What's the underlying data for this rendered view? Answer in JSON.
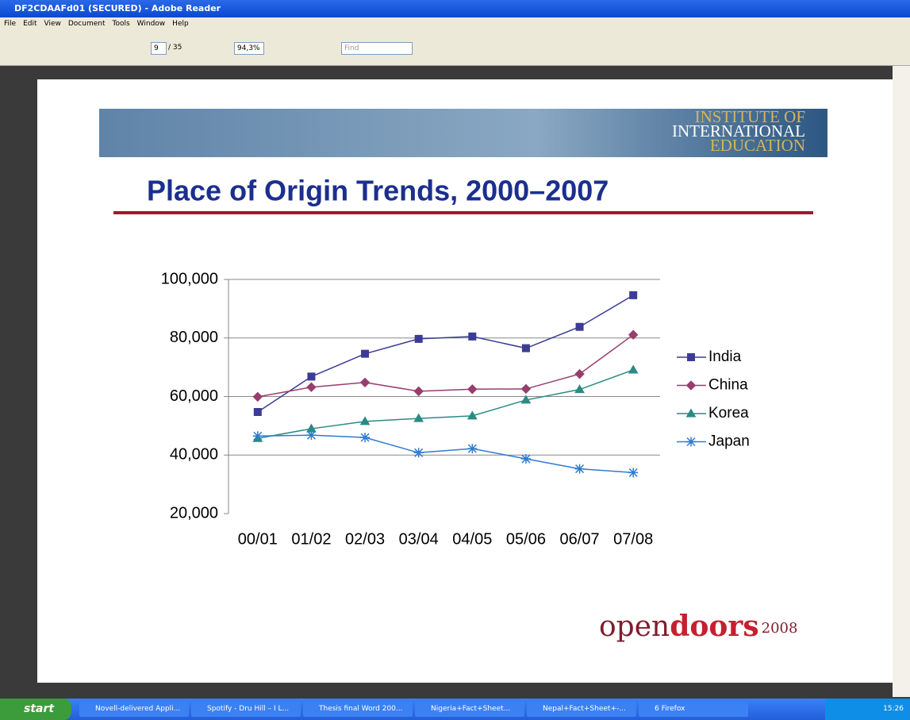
{
  "window": {
    "title": "DF2CDAAFd01 (SECURED) - Adobe Reader"
  },
  "menu": [
    "File",
    "Edit",
    "View",
    "Document",
    "Tools",
    "Window",
    "Help"
  ],
  "toolbar": {
    "page": "9",
    "pages": "/ 35",
    "zoom": "94,3%",
    "find": "Find"
  },
  "slide": {
    "banner": [
      "INSTITUTE OF",
      "INTERNATIONAL",
      "EDUCATION"
    ],
    "title": "Place of Origin Trends, 2000–2007",
    "logo": {
      "open": "open",
      "doors": "doors",
      "year": "2008"
    }
  },
  "chart_data": {
    "type": "line",
    "categories": [
      "00/01",
      "01/02",
      "02/03",
      "03/04",
      "04/05",
      "05/06",
      "06/07",
      "07/08"
    ],
    "series": [
      {
        "name": "India",
        "color": "#3c3c96",
        "marker": "square",
        "values": [
          54700,
          66800,
          74600,
          79700,
          80500,
          76500,
          83800,
          94600
        ]
      },
      {
        "name": "China",
        "color": "#973e6c",
        "marker": "diamond",
        "values": [
          59900,
          63200,
          64800,
          61800,
          62500,
          62600,
          67700,
          81100
        ]
      },
      {
        "name": "Korea",
        "color": "#2b8a84",
        "marker": "triangle",
        "values": [
          45700,
          49000,
          51500,
          52500,
          53400,
          58800,
          62400,
          69100
        ]
      },
      {
        "name": "Japan",
        "color": "#2f7bcf",
        "marker": "asterisk",
        "values": [
          46500,
          46800,
          46000,
          40800,
          42200,
          38700,
          35300,
          34000
        ]
      }
    ],
    "ylim": [
      20000,
      100000
    ],
    "yticks": [
      {
        "value": 20000,
        "label": "20,000"
      },
      {
        "value": 40000,
        "label": "40,000"
      },
      {
        "value": 60000,
        "label": "60,000"
      },
      {
        "value": 80000,
        "label": "80,000"
      },
      {
        "value": 100000,
        "label": "100,000"
      }
    ],
    "grid": true
  },
  "taskbar": {
    "start": "start",
    "items": [
      "Novell-delivered Appli...",
      "Spotify - Dru Hill – I L...",
      "Thesis final Word 200...",
      "Nigeria+Fact+Sheet...",
      "Nepal+Fact+Sheet+-...",
      "6 Firefox"
    ],
    "clock": "15:26"
  }
}
